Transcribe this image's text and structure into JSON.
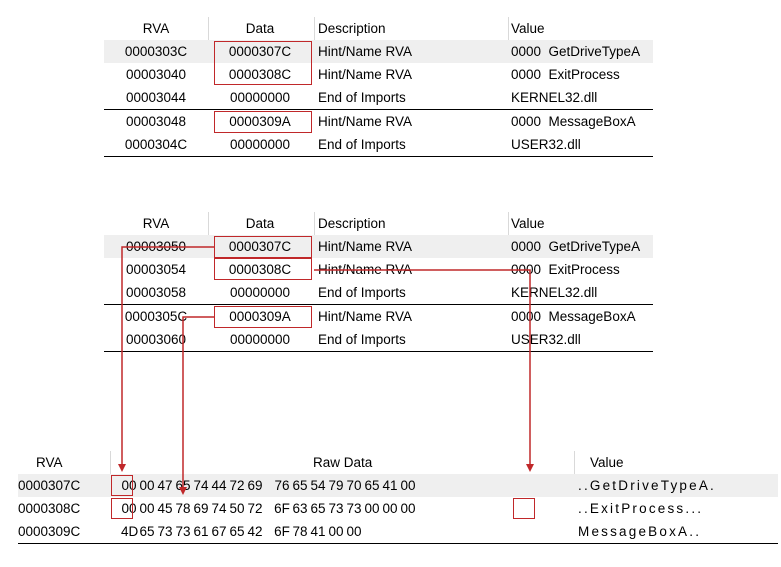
{
  "columns": {
    "rva": "RVA",
    "data": "Data",
    "description": "Description",
    "value": "Value"
  },
  "table1": [
    {
      "rva": "0000303C",
      "data": "0000307C",
      "desc": "Hint/Name RVA",
      "value": "0000  GetDriveTypeA"
    },
    {
      "rva": "00003040",
      "data": "0000308C",
      "desc": "Hint/Name RVA",
      "value": "0000  ExitProcess"
    },
    {
      "rva": "00003044",
      "data": "00000000",
      "desc": "End of Imports",
      "value": "KERNEL32.dll"
    },
    {
      "rva": "00003048",
      "data": "0000309A",
      "desc": "Hint/Name RVA",
      "value": "0000  MessageBoxA"
    },
    {
      "rva": "0000304C",
      "data": "00000000",
      "desc": "End of Imports",
      "value": "USER32.dll"
    }
  ],
  "table2": [
    {
      "rva": "00003050",
      "data": "0000307C",
      "desc": "Hint/Name RVA",
      "value": "0000  GetDriveTypeA"
    },
    {
      "rva": "00003054",
      "data": "0000308C",
      "desc": "Hint/Name RVA",
      "value": "0000  ExitProcess"
    },
    {
      "rva": "00003058",
      "data": "00000000",
      "desc": "End of Imports",
      "value": "KERNEL32.dll"
    },
    {
      "rva": "0000305C",
      "data": "0000309A",
      "desc": "Hint/Name RVA",
      "value": "0000  MessageBoxA"
    },
    {
      "rva": "00003060",
      "data": "00000000",
      "desc": "End of Imports",
      "value": "USER32.dll"
    }
  ],
  "hex": {
    "header": {
      "rva": "RVA",
      "raw": "Raw Data",
      "value": "Value"
    },
    "rows": [
      {
        "rva": "0000307C",
        "bytes": [
          "00",
          "00",
          "47",
          "65",
          "74",
          "44",
          "72",
          "69",
          "76",
          "65",
          "54",
          "79",
          "70",
          "65",
          "41",
          "00"
        ],
        "value": "..GetDriveTypeA."
      },
      {
        "rva": "0000308C",
        "bytes": [
          "00",
          "00",
          "45",
          "78",
          "69",
          "74",
          "50",
          "72",
          "6F",
          "63",
          "65",
          "73",
          "73",
          "00",
          "00",
          "00"
        ],
        "value": "..ExitProcess..."
      },
      {
        "rva": "0000309C",
        "bytes": [
          "4D",
          "65",
          "73",
          "73",
          "61",
          "67",
          "65",
          "42",
          "6F",
          "78",
          "41",
          "00",
          "00"
        ],
        "value": "MessageBoxA.."
      }
    ]
  },
  "colors": {
    "highlight": "#c0282a",
    "row_shade": "#efefef"
  }
}
